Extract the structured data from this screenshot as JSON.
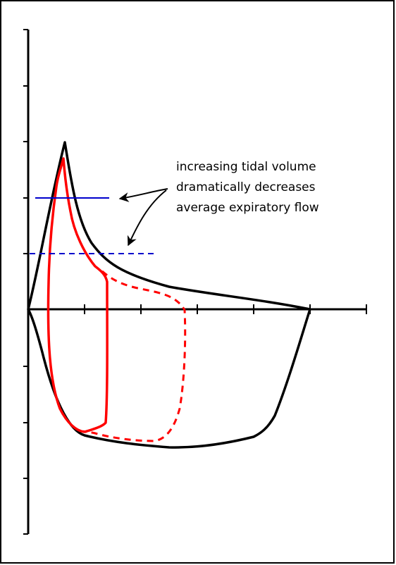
{
  "annotation": {
    "lines": [
      "increasing tidal volume",
      "dramatically decreases",
      "average expiratory flow"
    ]
  },
  "colors": {
    "envelope": "#000000",
    "loop": "#ff0000",
    "mean_flow": "#0000cc",
    "border": "#000000"
  }
}
